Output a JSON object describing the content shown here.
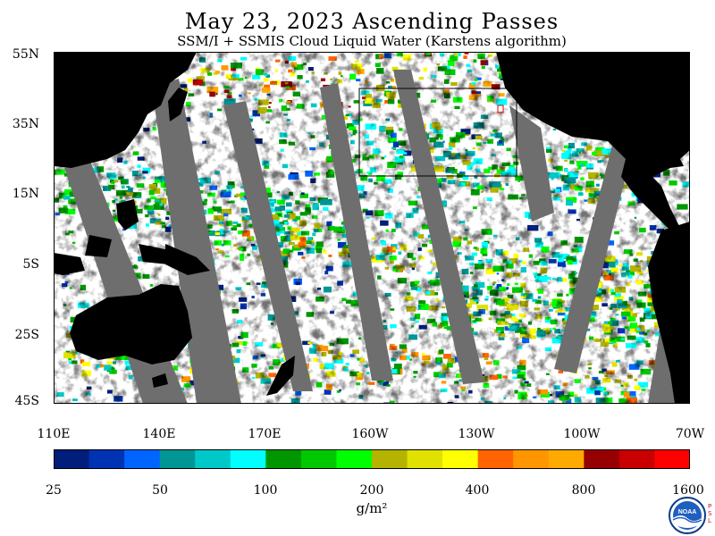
{
  "header": {
    "title": "May 23, 2023  Ascending Passes",
    "subtitle": "SSM/I + SSMIS Cloud Liquid Water (Karstens algorithm)"
  },
  "map": {
    "lat_labels": [
      "55N",
      "35N",
      "15N",
      "5S",
      "25S",
      "45S"
    ],
    "lon_labels": [
      "110E",
      "140E",
      "170E",
      "160W",
      "130W",
      "100W",
      "70W"
    ],
    "colors": {
      "land": "#000000",
      "missing": "#6e6e6e",
      "clear": "#ffffff",
      "box": "#000000",
      "marker": "#e00000"
    }
  },
  "colorbar": {
    "labels": [
      "25",
      "50",
      "100",
      "200",
      "400",
      "800",
      "1600"
    ],
    "units": "g/m²",
    "colors": [
      "#001e7a",
      "#0032b4",
      "#0064ff",
      "#009696",
      "#00c8c8",
      "#00ffff",
      "#009600",
      "#00c800",
      "#00ff00",
      "#b4b400",
      "#e1e100",
      "#ffff00",
      "#ff6400",
      "#ff9600",
      "#ffaa00",
      "#960000",
      "#c80000",
      "#ff0000"
    ]
  },
  "logo": {
    "text": "NOAA",
    "side_text": "PSL"
  }
}
